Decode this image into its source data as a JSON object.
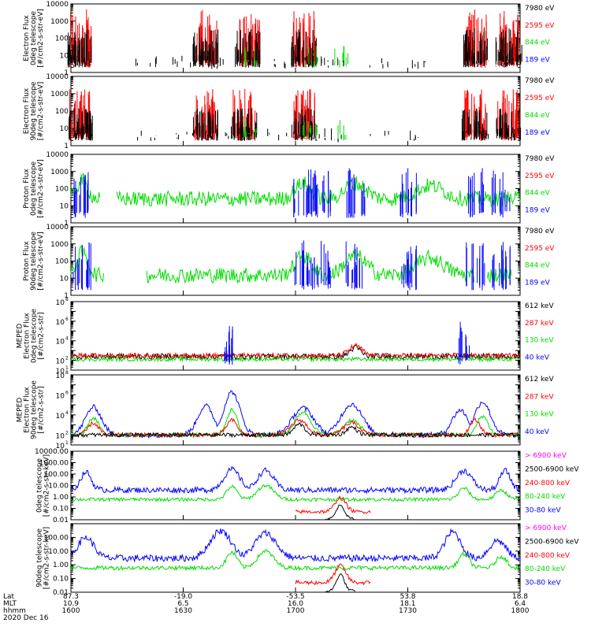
{
  "colors": {
    "black": "#000000",
    "red": "#ff0000",
    "green": "#00dd00",
    "blue": "#0000ff",
    "magenta": "#ff00ff"
  },
  "chart_data": [
    {
      "type": "line",
      "panel": 1,
      "ylabel": [
        "Electron Flux",
        "0deg telescope",
        "[#/cm2-s-str-eV]"
      ],
      "ylim": [
        1,
        10000
      ],
      "yscale": "log",
      "yticks": [
        "1",
        "10",
        "100",
        "1000",
        "10000"
      ],
      "legend": [
        {
          "label": "7980 eV",
          "color": "#000000"
        },
        {
          "label": "2595 eV",
          "color": "#ff0000"
        },
        {
          "label": "844 eV",
          "color": "#00dd00"
        },
        {
          "label": "189 eV",
          "color": "#0000ff"
        }
      ]
    },
    {
      "type": "line",
      "panel": 2,
      "ylabel": [
        "Electron Flux",
        "90deg telescope",
        "[#/cm2-s-str-eV]"
      ],
      "ylim": [
        1,
        10000
      ],
      "yscale": "log",
      "yticks": [
        "1",
        "10",
        "100",
        "1000",
        "10000"
      ],
      "legend": [
        {
          "label": "7980 eV",
          "color": "#000000"
        },
        {
          "label": "2595 eV",
          "color": "#ff0000"
        },
        {
          "label": "844 eV",
          "color": "#00dd00"
        },
        {
          "label": "189 eV",
          "color": "#0000ff"
        }
      ]
    },
    {
      "type": "line",
      "panel": 3,
      "ylabel": [
        "Proton Flux",
        "0deg telescope",
        "[#/cm2-s-str-eV]"
      ],
      "ylim": [
        1,
        10000
      ],
      "yscale": "log",
      "yticks": [
        "1",
        "10",
        "100",
        "1000",
        "10000"
      ],
      "legend": [
        {
          "label": "7980 eV",
          "color": "#000000"
        },
        {
          "label": "2595 eV",
          "color": "#ff0000"
        },
        {
          "label": "844 eV",
          "color": "#00dd00"
        },
        {
          "label": "189 eV",
          "color": "#0000ff"
        }
      ]
    },
    {
      "type": "line",
      "panel": 4,
      "ylabel": [
        "Proton Flux",
        "90deg telescope",
        "[#/cm2-s-str-eV]"
      ],
      "ylim": [
        1,
        10000
      ],
      "yscale": "log",
      "yticks": [
        "1",
        "10",
        "100",
        "1000",
        "10000"
      ],
      "legend": [
        {
          "label": "7980 eV",
          "color": "#000000"
        },
        {
          "label": "2595 eV",
          "color": "#ff0000"
        },
        {
          "label": "844 eV",
          "color": "#00dd00"
        },
        {
          "label": "189 eV",
          "color": "#0000ff"
        }
      ]
    },
    {
      "type": "line",
      "panel": 5,
      "ylabel": [
        "MEPED",
        "Electron Flux",
        "0deg telescope",
        "[#/cm2-s-str]"
      ],
      "ylim": [
        10,
        100000000
      ],
      "yscale": "log",
      "yticks": [
        "10",
        "10",
        "10",
        "10"
      ],
      "ytick_exps": [
        "1",
        "2",
        "4",
        "6",
        "8"
      ],
      "legend": [
        {
          "label": "612 keV",
          "color": "#000000"
        },
        {
          "label": "287 keV",
          "color": "#ff0000"
        },
        {
          "label": "130 keV",
          "color": "#00dd00"
        },
        {
          "label": "40 keV",
          "color": "#0000ff"
        }
      ]
    },
    {
      "type": "line",
      "panel": 6,
      "ylabel": [
        "MEPED",
        "Electron Flux",
        "90deg telescope",
        "[#/cm2-s-str]"
      ],
      "ylim": [
        10,
        100000000
      ],
      "yscale": "log",
      "ytick_exps": [
        "1",
        "2",
        "4",
        "6",
        "8"
      ],
      "legend": [
        {
          "label": "612 keV",
          "color": "#000000"
        },
        {
          "label": "287 keV",
          "color": "#ff0000"
        },
        {
          "label": "130 keV",
          "color": "#00dd00"
        },
        {
          "label": "40 keV",
          "color": "#0000ff"
        }
      ]
    },
    {
      "type": "line",
      "panel": 7,
      "ylabel": [
        "0deg telescope",
        "[#/cm2-s-str-keV]"
      ],
      "ylim": [
        0.01,
        10000
      ],
      "yscale": "log",
      "yticks": [
        "0.01",
        "0.10",
        "1.00",
        "10.00",
        "100.00",
        "1000.00",
        "10000.00"
      ],
      "legend": [
        {
          "label": "> 6900 keV",
          "color": "#ff00ff"
        },
        {
          "label": "2500-6900 keV",
          "color": "#000000"
        },
        {
          "label": "240-800 keV",
          "color": "#ff0000"
        },
        {
          "label": "80-240 keV",
          "color": "#00dd00"
        },
        {
          "label": "30-80 keV",
          "color": "#0000ff"
        }
      ]
    },
    {
      "type": "line",
      "panel": 8,
      "ylabel": [
        "90deg telescope",
        "[#/cm2-s-str-keV]"
      ],
      "ylim": [
        0.01,
        1000
      ],
      "yscale": "log",
      "yticks": [
        "0.01",
        "0.10",
        "1.00",
        "10.00",
        "100.00"
      ],
      "legend": [
        {
          "label": "> 6900 keV",
          "color": "#ff00ff"
        },
        {
          "label": "2500-6900 keV",
          "color": "#000000"
        },
        {
          "label": "240-800 keV",
          "color": "#ff0000"
        },
        {
          "label": "80-240 keV",
          "color": "#00dd00"
        },
        {
          "label": "30-80 keV",
          "color": "#0000ff"
        }
      ]
    }
  ],
  "xaxis": {
    "row_labels": [
      "Lat",
      "MLT",
      "hhmm",
      "2020 Dec 16"
    ],
    "ticks": [
      {
        "lat": "87.3",
        "mlt": "10.9",
        "hhmm": "1600"
      },
      {
        "lat": "-19.0",
        "mlt": "6.5",
        "hhmm": "1630"
      },
      {
        "lat": "-53.5",
        "mlt": "16.0",
        "hhmm": "1700"
      },
      {
        "lat": "53.8",
        "mlt": "18.1",
        "hhmm": "1730"
      },
      {
        "lat": "18.8",
        "mlt": "6.4",
        "hhmm": "1800"
      }
    ]
  }
}
